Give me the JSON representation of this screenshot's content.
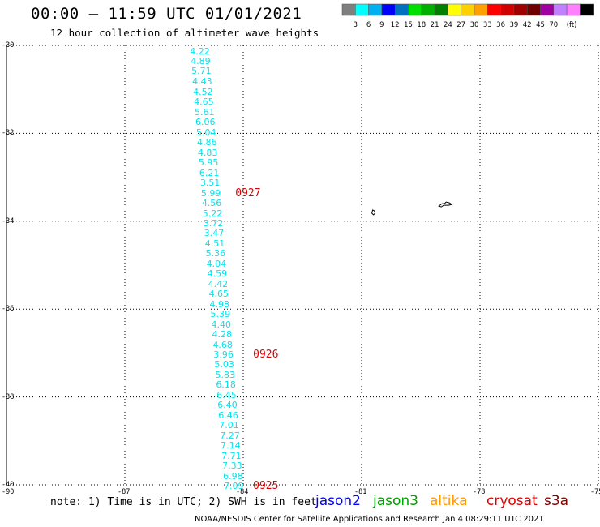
{
  "header": {
    "title": "00:00 – 11:59 UTC 01/01/2021",
    "subtitle": "12 hour collection of altimeter wave heights"
  },
  "map": {
    "lon_range": [
      -90,
      -75
    ],
    "lat_range": [
      -40,
      -30
    ],
    "lon_ticks": [
      {
        "value": -90,
        "label": "-90"
      },
      {
        "value": -87,
        "label": "-87"
      },
      {
        "value": -84,
        "label": "-84"
      },
      {
        "value": -81,
        "label": "-81"
      },
      {
        "value": -78,
        "label": "-78"
      },
      {
        "value": -75,
        "label": "-75"
      }
    ],
    "lat_ticks": [
      {
        "value": -30,
        "label": "-30"
      },
      {
        "value": -32,
        "label": "-32"
      },
      {
        "value": -34,
        "label": "-34"
      },
      {
        "value": -36,
        "label": "-36"
      },
      {
        "value": -38,
        "label": "-38"
      },
      {
        "value": -40,
        "label": "-40"
      }
    ],
    "gridlines": true,
    "gridline_style": "dotted",
    "islands": [
      "small island near -80.7,-33.8",
      "small island near -78.9,-33.6"
    ]
  },
  "chart_data": {
    "type": "scatter",
    "title": "12 hour collection of altimeter wave heights",
    "xlabel": "",
    "ylabel": "",
    "xlim": [
      -90,
      -75
    ],
    "ylim": [
      -40,
      -30
    ],
    "series": [
      {
        "name": "s3a",
        "color": "#00e5ee",
        "points": [
          {
            "lon": -85.1,
            "lat": -30.12,
            "swh": "4.22"
          },
          {
            "lon": -85.08,
            "lat": -30.35,
            "swh": "4.89"
          },
          {
            "lon": -85.06,
            "lat": -30.58,
            "swh": "5.71"
          },
          {
            "lon": -85.04,
            "lat": -30.82,
            "swh": "4.43"
          },
          {
            "lon": -85.02,
            "lat": -31.05,
            "swh": "4.52"
          },
          {
            "lon": -85.0,
            "lat": -31.28,
            "swh": "4.65"
          },
          {
            "lon": -84.98,
            "lat": -31.51,
            "swh": "5.61"
          },
          {
            "lon": -84.96,
            "lat": -31.74,
            "swh": "6.06"
          },
          {
            "lon": -84.94,
            "lat": -31.97,
            "swh": "5.04"
          },
          {
            "lon": -84.92,
            "lat": -32.2,
            "swh": "4.86"
          },
          {
            "lon": -84.9,
            "lat": -32.43,
            "swh": "4.83"
          },
          {
            "lon": -84.88,
            "lat": -32.66,
            "swh": "5.95"
          },
          {
            "lon": -84.86,
            "lat": -32.89,
            "swh": "6.21"
          },
          {
            "lon": -84.84,
            "lat": -33.12,
            "swh": "3.51"
          },
          {
            "lon": -84.82,
            "lat": -33.35,
            "swh": "5.99"
          },
          {
            "lon": -84.8,
            "lat": -33.58,
            "swh": "4.56"
          },
          {
            "lon": -84.78,
            "lat": -33.81,
            "swh": "5.22"
          },
          {
            "lon": -84.76,
            "lat": -34.04,
            "swh": "3.72"
          },
          {
            "lon": -84.74,
            "lat": -34.27,
            "swh": "3.47"
          },
          {
            "lon": -84.72,
            "lat": -34.5,
            "swh": "4.51"
          },
          {
            "lon": -84.7,
            "lat": -34.73,
            "swh": "5.36"
          },
          {
            "lon": -84.68,
            "lat": -34.96,
            "swh": "4.04"
          },
          {
            "lon": -84.66,
            "lat": -35.19,
            "swh": "4.59"
          },
          {
            "lon": -84.64,
            "lat": -35.42,
            "swh": "4.42"
          },
          {
            "lon": -84.62,
            "lat": -35.65,
            "swh": "4.65"
          },
          {
            "lon": -84.6,
            "lat": -35.88,
            "swh": "4.98"
          },
          {
            "lon": -84.58,
            "lat": -36.11,
            "swh": "5.39"
          },
          {
            "lon": -84.56,
            "lat": -36.34,
            "swh": "4.40"
          },
          {
            "lon": -84.54,
            "lat": -36.57,
            "swh": "4.28"
          },
          {
            "lon": -84.52,
            "lat": -36.8,
            "swh": "4.68"
          },
          {
            "lon": -84.5,
            "lat": -37.03,
            "swh": "3.96"
          },
          {
            "lon": -84.48,
            "lat": -37.26,
            "swh": "5.03"
          },
          {
            "lon": -84.46,
            "lat": -37.49,
            "swh": "5.83"
          },
          {
            "lon": -84.44,
            "lat": -37.72,
            "swh": "6.18"
          },
          {
            "lon": -84.42,
            "lat": -37.95,
            "swh": "6.45"
          },
          {
            "lon": -84.4,
            "lat": -38.18,
            "swh": "6.40"
          },
          {
            "lon": -84.38,
            "lat": -38.41,
            "swh": "6.46"
          },
          {
            "lon": -84.36,
            "lat": -38.64,
            "swh": "7.01"
          },
          {
            "lon": -84.34,
            "lat": -38.87,
            "swh": "7.27"
          },
          {
            "lon": -84.32,
            "lat": -39.1,
            "swh": "7.14"
          },
          {
            "lon": -84.3,
            "lat": -39.33,
            "swh": "7.71"
          },
          {
            "lon": -84.28,
            "lat": -39.56,
            "swh": "7.33"
          },
          {
            "lon": -84.26,
            "lat": -39.79,
            "swh": "6.98"
          },
          {
            "lon": -84.24,
            "lat": -40.02,
            "swh": "7.09"
          }
        ]
      }
    ],
    "pass_times": [
      {
        "label": "0927",
        "lon": -84.2,
        "lat": -33.36,
        "color": "#e00000"
      },
      {
        "label": "0926",
        "lon": -83.75,
        "lat": -37.03,
        "color": "#e00000"
      },
      {
        "label": "0925",
        "lon": -83.75,
        "lat": -40.01,
        "color": "#e00000"
      }
    ]
  },
  "colorbar": {
    "unit": "(ft)",
    "colors": [
      "#7f7f7f",
      "#00ffff",
      "#00b0f0",
      "#0000ff",
      "#0070c0",
      "#00e000",
      "#00b000",
      "#008000",
      "#ffff00",
      "#ffd000",
      "#ffa000",
      "#ff0000",
      "#d00000",
      "#a00000",
      "#700000",
      "#a000a0",
      "#c080ff",
      "#ff80ff",
      "#000000"
    ],
    "labels": [
      "3",
      "6",
      "9",
      "12",
      "15",
      "18",
      "21",
      "24",
      "27",
      "30",
      "33",
      "36",
      "39",
      "42",
      "45",
      "70"
    ]
  },
  "footer": {
    "note": "note: 1) Time is in UTC; 2) SWH is in feet",
    "satellites": [
      {
        "name": "jason2",
        "color": "#0000ee"
      },
      {
        "name": "jason3",
        "color": "#00a000"
      },
      {
        "name": "altika",
        "color": "#ff9900"
      },
      {
        "name": "cryosat",
        "color": "#e00000"
      },
      {
        "name": "s3a",
        "color": "#800000"
      }
    ],
    "credit": "NOAA/NESDIS Center for Satellite Applications and Research    Jan  4 08:29:11 UTC 2021"
  }
}
